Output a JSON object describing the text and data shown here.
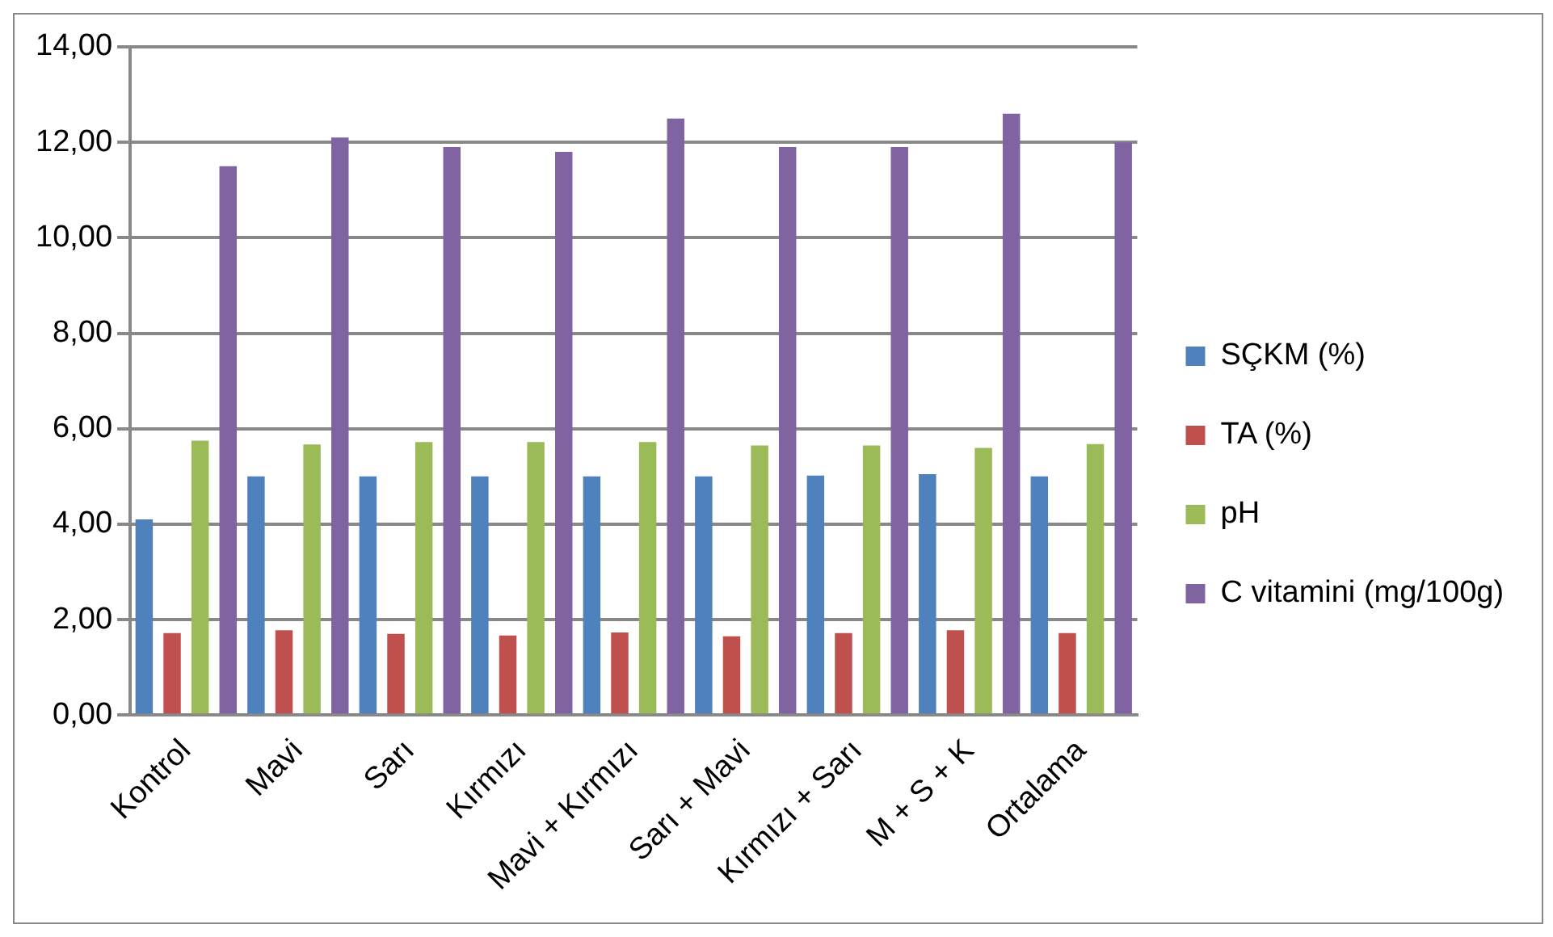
{
  "chart_data": {
    "type": "bar",
    "categories": [
      "Kontrol",
      "Mavi",
      "Sarı",
      "Kırmızı",
      "Mavi + Kırmızı",
      "Sarı + Mavi",
      "Kırmızı + Sarı",
      "M + S + K",
      "Ortalama"
    ],
    "series": [
      {
        "name": "SÇKM (%)",
        "color": "#4f81bd",
        "values": [
          4.1,
          5.0,
          5.0,
          5.0,
          5.0,
          5.0,
          5.02,
          5.05,
          5.0
        ]
      },
      {
        "name": "TA (%)",
        "color": "#c0504d",
        "values": [
          1.72,
          1.78,
          1.7,
          1.67,
          1.73,
          1.65,
          1.72,
          1.78,
          1.72
        ]
      },
      {
        "name": "pH",
        "color": "#9bbb59",
        "values": [
          5.75,
          5.67,
          5.72,
          5.72,
          5.72,
          5.65,
          5.65,
          5.6,
          5.68
        ]
      },
      {
        "name": "C vitamini (mg/100g)",
        "color": "#8064a2",
        "values": [
          11.5,
          12.1,
          11.9,
          11.8,
          12.5,
          11.9,
          11.9,
          12.6,
          12.0
        ]
      }
    ],
    "ylim": [
      0,
      14
    ],
    "yticks": [
      {
        "value": 0,
        "label": "0,00"
      },
      {
        "value": 2,
        "label": "2,00"
      },
      {
        "value": 4,
        "label": "4,00"
      },
      {
        "value": 6,
        "label": "6,00"
      },
      {
        "value": 8,
        "label": "8,00"
      },
      {
        "value": 10,
        "label": "10,00"
      },
      {
        "value": 12,
        "label": "12,00"
      },
      {
        "value": 14,
        "label": "14,00"
      }
    ],
    "grid": "y",
    "legend": "right"
  }
}
